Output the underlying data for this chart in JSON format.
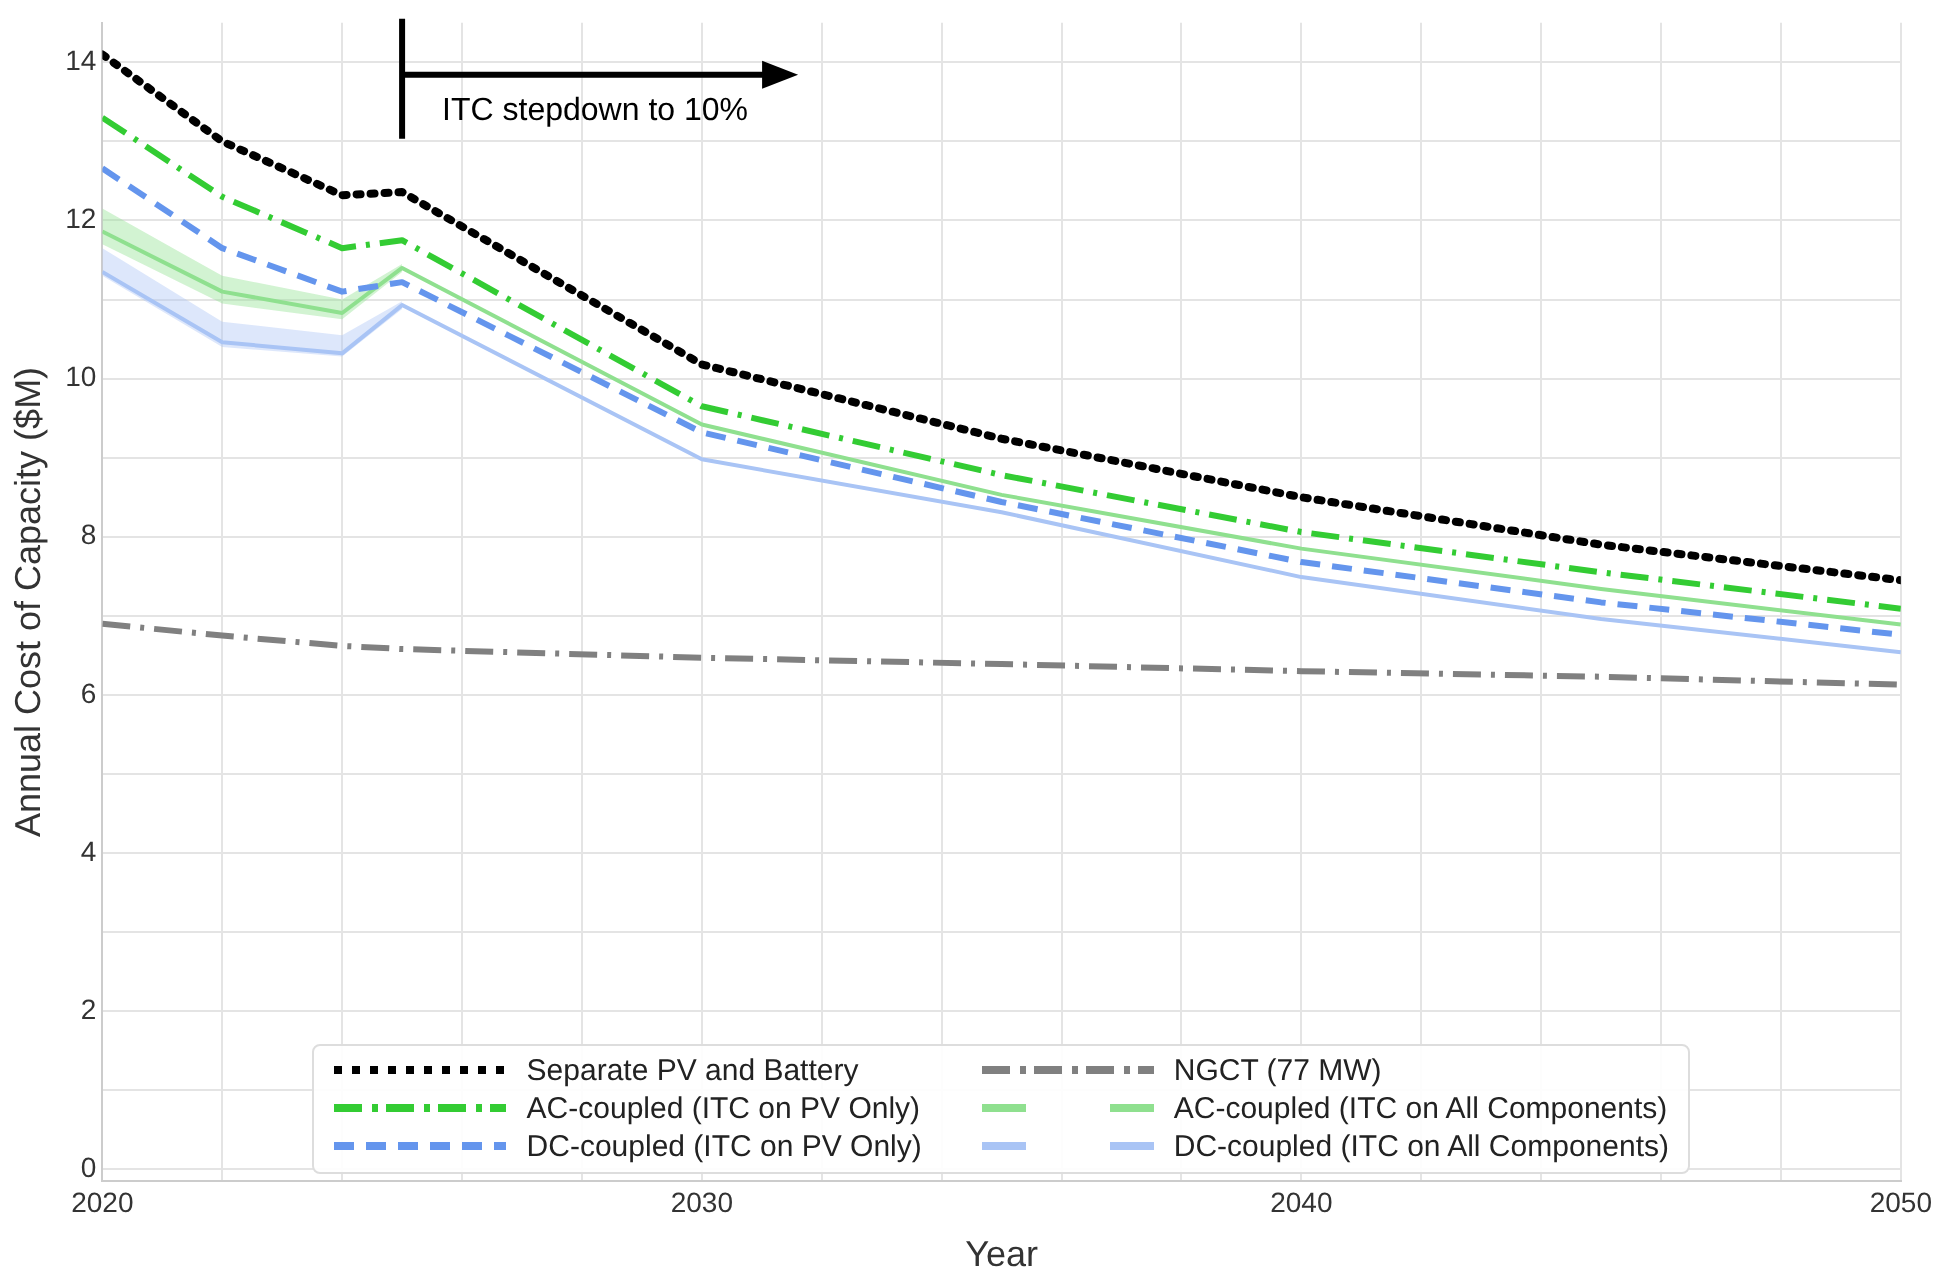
{
  "chart_data": {
    "type": "line",
    "xlabel": "Year",
    "ylabel": "Annual Cost of Capacity ($M)",
    "x": [
      2020,
      2022,
      2024,
      2025,
      2030,
      2035,
      2040,
      2045,
      2050
    ],
    "xlim": [
      2020,
      2050
    ],
    "xticks": [
      2020,
      {
        "value": 2022,
        "label": null
      },
      {
        "value": 2024,
        "label": null
      },
      {
        "value": 2026,
        "label": null
      },
      {
        "value": 2028,
        "label": null
      },
      2030,
      {
        "value": 2032,
        "label": null
      },
      {
        "value": 2034,
        "label": null
      },
      {
        "value": 2036,
        "label": null
      },
      {
        "value": 2038,
        "label": null
      },
      2040,
      {
        "value": 2042,
        "label": null
      },
      {
        "value": 2044,
        "label": null
      },
      {
        "value": 2046,
        "label": null
      },
      {
        "value": 2048,
        "label": null
      },
      2050
    ],
    "ylim": [
      -0.15,
      14.5
    ],
    "yticks": [
      0,
      {
        "value": 1,
        "label": null
      },
      2,
      {
        "value": 3,
        "label": null
      },
      4,
      {
        "value": 5,
        "label": null
      },
      6,
      {
        "value": 7,
        "label": null
      },
      8,
      {
        "value": 9,
        "label": null
      },
      10,
      {
        "value": 11,
        "label": null
      },
      12,
      {
        "value": 13,
        "label": null
      },
      14
    ],
    "grid": true,
    "legend": "bottom",
    "marker": "none",
    "annotations": [
      "ITC stepdown to 10%"
    ],
    "series": [
      {
        "name": "Separate PV and Battery",
        "color": "#000000",
        "line_style": "dotted",
        "values": [
          14.1,
          13.0,
          12.32,
          12.36,
          10.18,
          9.24,
          8.5,
          7.9,
          7.45
        ]
      },
      {
        "name": "AC-coupled (ITC on PV Only)",
        "color": "#33cc33",
        "line_style": "dashdot",
        "values": [
          13.3,
          12.3,
          11.65,
          11.75,
          9.65,
          8.78,
          8.06,
          7.55,
          7.09
        ]
      },
      {
        "name": "DC-coupled (ITC on PV Only)",
        "color": "#6495ed",
        "line_style": "dashed",
        "values": [
          12.66,
          11.65,
          11.1,
          11.22,
          9.32,
          8.44,
          7.68,
          7.17,
          6.76
        ]
      },
      {
        "name": "NGCT (77 MW)",
        "color": "#808080",
        "line_style": "dashdot",
        "values": [
          6.9,
          6.75,
          6.62,
          6.58,
          6.47,
          6.39,
          6.3,
          6.23,
          6.13
        ]
      },
      {
        "name": "AC-coupled (ITC on All Components)",
        "color": "#8fe08f",
        "line_style": "solid",
        "values": [
          11.86,
          11.1,
          10.83,
          11.4,
          9.42,
          8.53,
          7.85,
          7.34,
          6.89
        ],
        "lower": [
          11.7,
          10.95,
          10.75,
          11.35,
          null,
          null,
          null,
          null,
          null
        ],
        "upper": [
          12.15,
          11.3,
          11.0,
          11.45,
          null,
          null,
          null,
          null,
          null
        ]
      },
      {
        "name": "DC-coupled (ITC on All Components)",
        "color": "#a9c4f5",
        "line_style": "solid",
        "values": [
          11.35,
          10.46,
          10.32,
          10.93,
          8.98,
          8.31,
          7.49,
          6.96,
          6.54
        ],
        "lower": [
          11.3,
          10.4,
          10.28,
          10.88,
          null,
          null,
          null,
          null,
          null
        ],
        "upper": [
          11.65,
          10.72,
          10.55,
          10.98,
          null,
          null,
          null,
          null,
          null
        ]
      }
    ]
  }
}
